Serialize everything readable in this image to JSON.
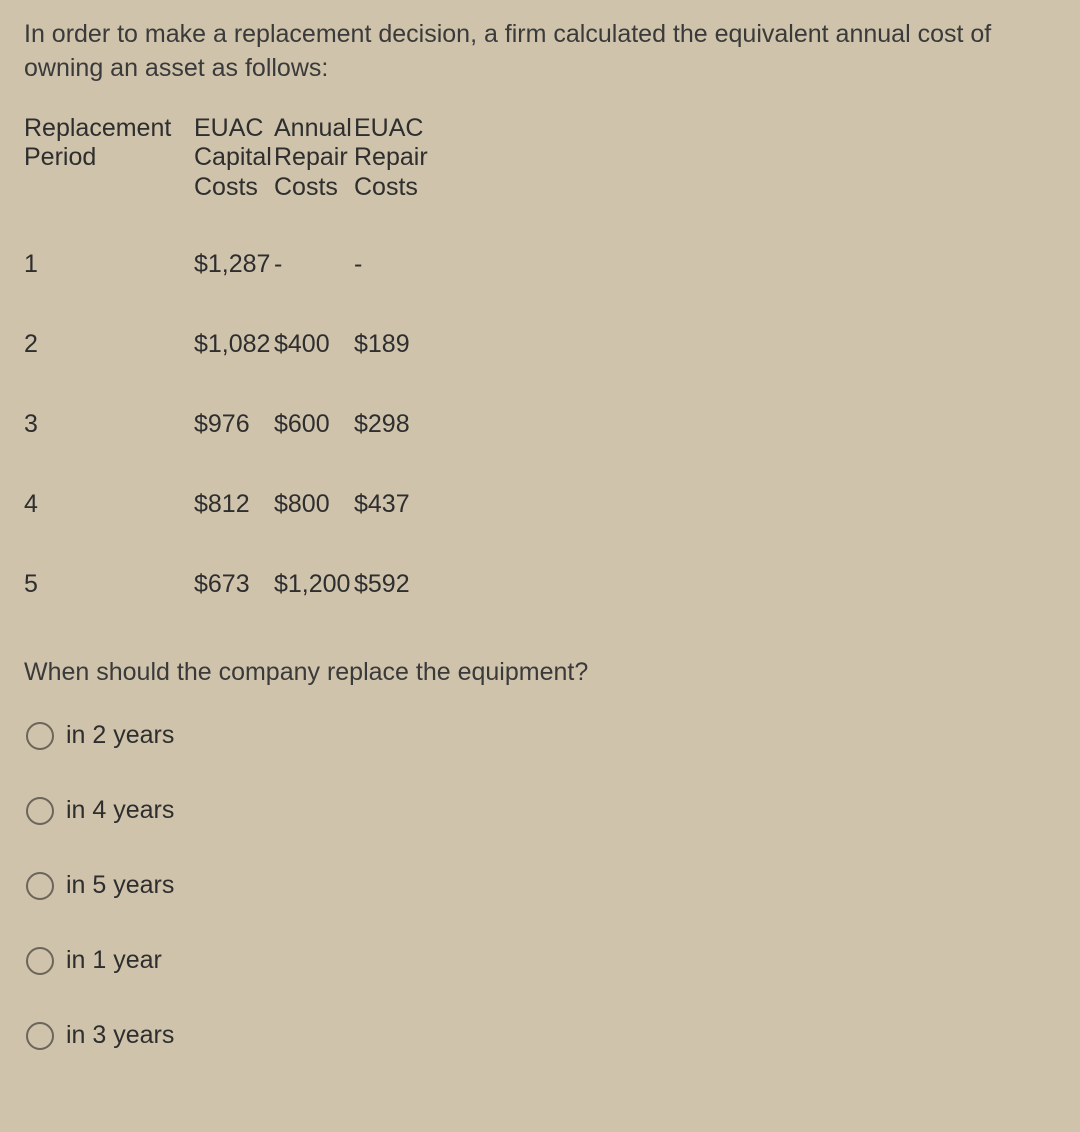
{
  "intro": "In order to make a replacement decision, a firm calculated the equivalent annual cost of owning an asset as follows:",
  "headers": {
    "period_l1": "Replacement",
    "period_l2": "Period",
    "cap_l1": "EUAC",
    "cap_l2": "Capital",
    "cap_l3": "Costs",
    "ann_l1": "Annual",
    "ann_l2": "Repair",
    "ann_l3": "Costs",
    "euac_l1": "EUAC",
    "euac_l2": "Repair",
    "euac_l3": "Costs"
  },
  "rows": [
    {
      "period": "1",
      "cap": "$1,287",
      "ann": "-",
      "euac": "-"
    },
    {
      "period": "2",
      "cap": "$1,082",
      "ann": "$400",
      "euac": "$189"
    },
    {
      "period": "3",
      "cap": "$976",
      "ann": "$600",
      "euac": "$298"
    },
    {
      "period": "4",
      "cap": "$812",
      "ann": "$800",
      "euac": "$437"
    },
    {
      "period": "5",
      "cap": "$673",
      "ann": "$1,200",
      "euac": "$592"
    }
  ],
  "question": "When should the company replace the equipment?",
  "options": [
    "in 2 years",
    "in 4 years",
    "in 5 years",
    "in 1 year",
    "in 3 years"
  ]
}
